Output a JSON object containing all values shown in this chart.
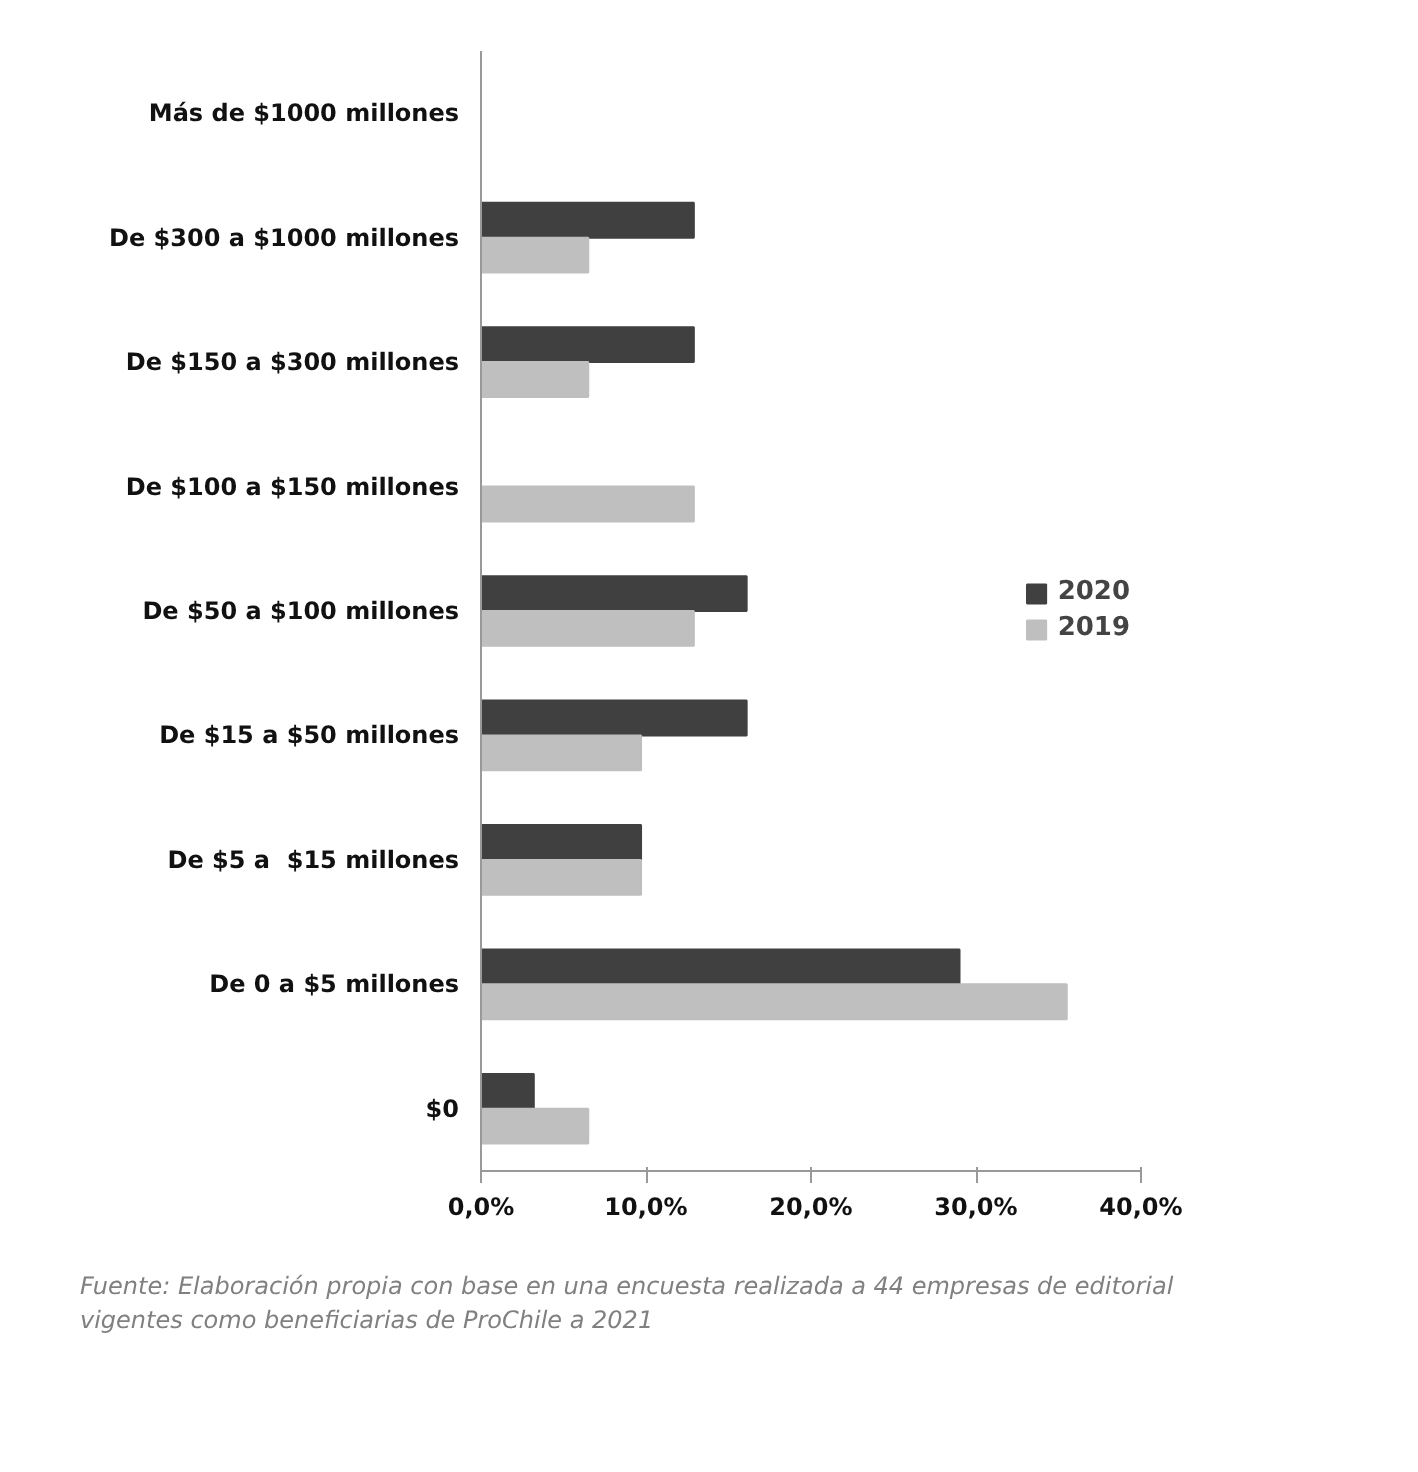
{
  "chart_data": {
    "type": "bar",
    "orientation": "horizontal",
    "categories": [
      "Más de $1000 millones",
      "De $300 a $1000 millones",
      "De $150 a $300 millones",
      "De $100 a $150 millones",
      "De $50 a $100 millones",
      "De $15 a $50 millones",
      "De $5 a  $15 millones",
      "De 0 a $5 millones",
      "$0"
    ],
    "series": [
      {
        "name": "2020",
        "color": "#404040",
        "values": [
          0,
          12.9,
          12.9,
          0,
          16.1,
          16.1,
          9.7,
          29.0,
          3.2
        ]
      },
      {
        "name": "2019",
        "color": "#bfbfbf",
        "values": [
          0,
          6.5,
          6.5,
          12.9,
          12.9,
          9.7,
          9.7,
          35.5,
          6.5
        ]
      }
    ],
    "xlim": [
      0,
      40
    ],
    "xticks": [
      {
        "value": 0,
        "label": "0,0%"
      },
      {
        "value": 10,
        "label": "10,0%"
      },
      {
        "value": 20,
        "label": "20,0%"
      },
      {
        "value": 30,
        "label": "30,0%"
      },
      {
        "value": 40,
        "label": "40,0%"
      }
    ],
    "grid": false,
    "legend": "right",
    "annotations": [
      "Fuente: Elaboración propia con base en una encuesta realizada a 44 empresas de editorial  vigentes como beneficiarias de ProChile a 2021"
    ]
  }
}
